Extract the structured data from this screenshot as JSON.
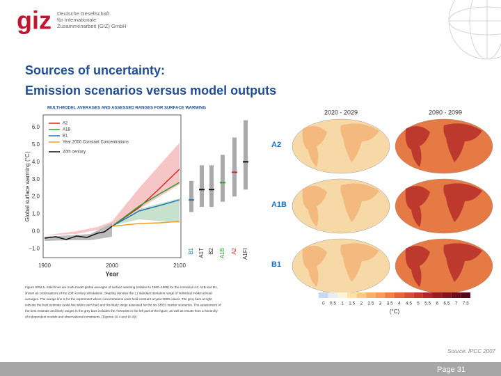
{
  "header": {
    "logo": "giz",
    "org": [
      "Deutsche Gesellschaft",
      "für Internationale",
      "Zusammenarbeit (GIZ) GmbH"
    ]
  },
  "title": [
    "Sources of uncertainty:",
    "Emission scenarios versus model outputs"
  ],
  "figure_left": {
    "title": "MULTI-MODEL AVERAGES AND ASSESSED RANGES FOR SURFACE WARMING",
    "y_label": "Global surface warming (°C)",
    "yticks": [
      "6.0",
      "5.0",
      "4.0",
      "3.0",
      "2.0",
      "1.0",
      "0.0",
      "−1.0"
    ],
    "xticks": [
      "1900",
      "2000",
      "2100"
    ],
    "x_label": "Year",
    "legend": [
      "A2",
      "A1B",
      "B1",
      "Year 2000 Constant Concentrations",
      "20th century"
    ],
    "bar_labels": [
      "B1",
      "A1T",
      "B2",
      "A1B",
      "A2",
      "A1FI"
    ],
    "caption": [
      "Figure SPM.5. Solid lines are multi-model global averages of surface warming (relative to 1980–1999) for the scenarios A2, A1B and B1,",
      "shown as continuations of the 20th century simulations. Shading denotes the ±1 standard deviation range of individual model annual",
      "averages. The orange line is for the experiment where concentrations were held constant at year 2000 values. The grey bars at right",
      "indicate the best estimate (solid line within each bar) and the likely range assessed for the six SRES marker scenarios. The assessment of",
      "the best estimate and likely ranges in the grey bars includes the AOGCMs in the left part of the figure, as well as results from a hierarchy",
      "of independent models and observational constraints. {Figures 10.4 and 10.29}"
    ]
  },
  "figure_right": {
    "periods": [
      "2020 - 2029",
      "2090 - 2099"
    ],
    "scenarios": [
      "A2",
      "A1B",
      "B1"
    ],
    "scale": [
      "0",
      "0.5",
      "1",
      "1.5",
      "2",
      "2.5",
      "3",
      "3.5",
      "4",
      "4.5",
      "5",
      "5.5",
      "6",
      "6.5",
      "7",
      "7.5"
    ],
    "unit": "(°C)"
  },
  "source": "Source: IPCC 2007",
  "footer": "Page 31"
}
